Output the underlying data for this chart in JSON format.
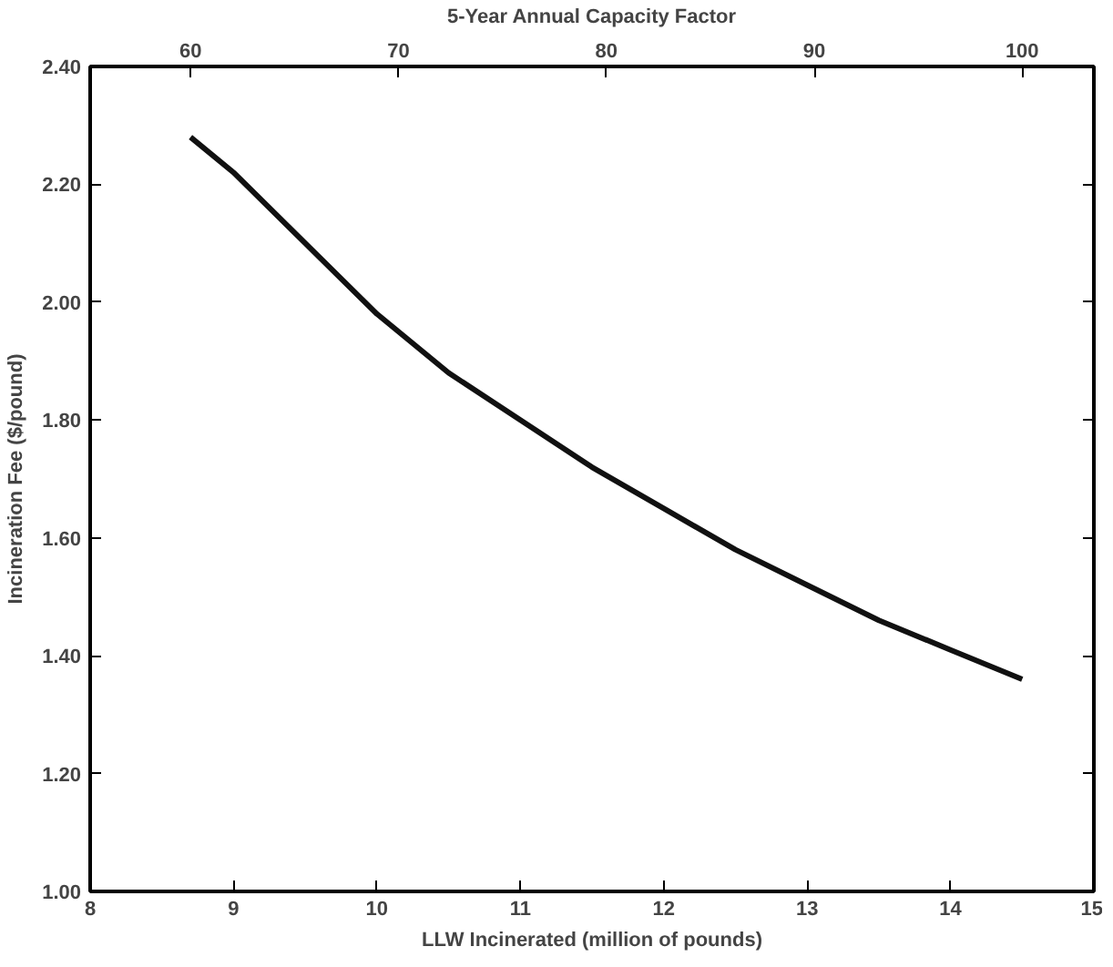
{
  "chart_data": {
    "type": "line",
    "xlabel": "LLW Incinerated (million of pounds)",
    "ylabel": "Incineration Fee ($/pound)",
    "x2label": "5-Year Annual Capacity Factor",
    "x": [
      8.7,
      9,
      9.5,
      10,
      10.5,
      11,
      11.5,
      12,
      12.5,
      13,
      13.5,
      14,
      14.5
    ],
    "series": [
      {
        "color": "#111111",
        "values": [
          2.28,
          2.22,
          2.1,
          1.98,
          1.88,
          1.8,
          1.72,
          1.65,
          1.58,
          1.52,
          1.46,
          1.41,
          1.36
        ]
      }
    ],
    "xlim": [
      8,
      15
    ],
    "xticks": [
      8,
      9,
      10,
      11,
      12,
      13,
      14,
      15
    ],
    "ylim": [
      1.0,
      2.4
    ],
    "yticks": [
      {
        "value": 1.0,
        "label": "1.00"
      },
      {
        "value": 1.2,
        "label": "1.20"
      },
      {
        "value": 1.4,
        "label": "1.40"
      },
      {
        "value": 1.6,
        "label": "1.60"
      },
      {
        "value": 1.8,
        "label": "1.80"
      },
      {
        "value": 2.0,
        "label": "2.00"
      },
      {
        "value": 2.2,
        "label": "2.20"
      },
      {
        "value": 2.4,
        "label": "2.40"
      }
    ],
    "x2lim": [
      55.17,
      103.45
    ],
    "x2ticks": [
      60,
      70,
      80,
      90,
      100
    ],
    "marker": "none",
    "line_style": "solid"
  }
}
